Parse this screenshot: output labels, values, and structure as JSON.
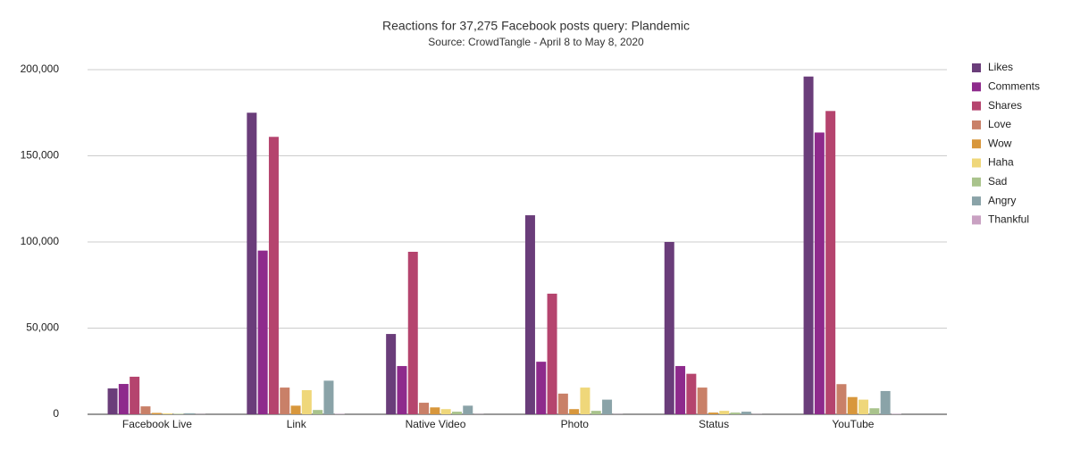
{
  "chart_data": {
    "type": "bar",
    "title": "Reactions for 37,275 Facebook posts query: Plandemic",
    "subtitle": "Source: CrowdTangle - April 8 to May 8, 2020",
    "categories": [
      "Facebook Live",
      "Link",
      "Native Video",
      "Photo",
      "Status",
      "YouTube"
    ],
    "series": [
      {
        "name": "Likes",
        "color": "#6a3d7a",
        "values": [
          15000,
          175000,
          46600,
          115500,
          100000,
          196000
        ]
      },
      {
        "name": "Comments",
        "color": "#8e2a8c",
        "values": [
          17600,
          95000,
          28000,
          30500,
          28000,
          163500
        ]
      },
      {
        "name": "Shares",
        "color": "#b5446e",
        "values": [
          21800,
          161000,
          94300,
          70000,
          23500,
          176000
        ]
      },
      {
        "name": "Love",
        "color": "#c98068",
        "values": [
          4600,
          15500,
          6700,
          12000,
          15500,
          17500
        ]
      },
      {
        "name": "Wow",
        "color": "#d8973c",
        "values": [
          800,
          5000,
          4000,
          3000,
          1000,
          10000
        ]
      },
      {
        "name": "Haha",
        "color": "#efd77a",
        "values": [
          500,
          14000,
          3000,
          15500,
          2000,
          8500
        ]
      },
      {
        "name": "Sad",
        "color": "#a9c38c",
        "values": [
          300,
          2500,
          1500,
          2000,
          1000,
          3500
        ]
      },
      {
        "name": "Angry",
        "color": "#8aa3a8",
        "values": [
          600,
          19500,
          5000,
          8500,
          1500,
          13500
        ]
      },
      {
        "name": "Thankful",
        "color": "#c9a1c2",
        "values": [
          100,
          200,
          100,
          100,
          100,
          200
        ]
      }
    ],
    "ylim": [
      0,
      200000
    ],
    "yticks": [
      {
        "value": 0,
        "label": "0"
      },
      {
        "value": 50000,
        "label": "50,000"
      },
      {
        "value": 100000,
        "label": "100,000"
      },
      {
        "value": 150000,
        "label": "150,000"
      },
      {
        "value": 200000,
        "label": "200,000"
      }
    ],
    "grid": true,
    "legend": "right"
  }
}
